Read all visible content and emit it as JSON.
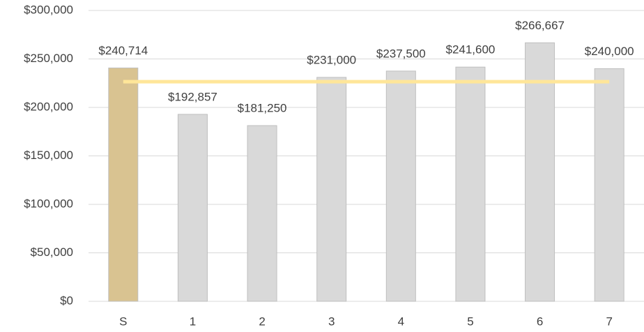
{
  "chart_data": {
    "type": "bar",
    "categories": [
      "S",
      "1",
      "2",
      "3",
      "4",
      "5",
      "6",
      "7"
    ],
    "values": [
      240714,
      192857,
      181250,
      231000,
      237500,
      241600,
      266667,
      240000
    ],
    "value_labels": [
      "$240,714",
      "$192,857",
      "$181,250",
      "$231,000",
      "$237,500",
      "$241,600",
      "$266,667",
      "$240,000"
    ],
    "colors": [
      "#d9c391",
      "#d9d9d9",
      "#d9d9d9",
      "#d9d9d9",
      "#d9d9d9",
      "#d9d9d9",
      "#d9d9d9",
      "#d9d9d9"
    ],
    "reference_line": {
      "value": 226500,
      "color": "#ffe699"
    },
    "ylim": [
      0,
      300000
    ],
    "yticks": [
      {
        "value": 0,
        "label": "$0"
      },
      {
        "value": 50000,
        "label": "$50,000"
      },
      {
        "value": 100000,
        "label": "$100,000"
      },
      {
        "value": 150000,
        "label": "$150,000"
      },
      {
        "value": 200000,
        "label": "$200,000"
      },
      {
        "value": 250000,
        "label": "$250,000"
      },
      {
        "value": 300000,
        "label": "$300,000"
      }
    ],
    "grid": true
  }
}
